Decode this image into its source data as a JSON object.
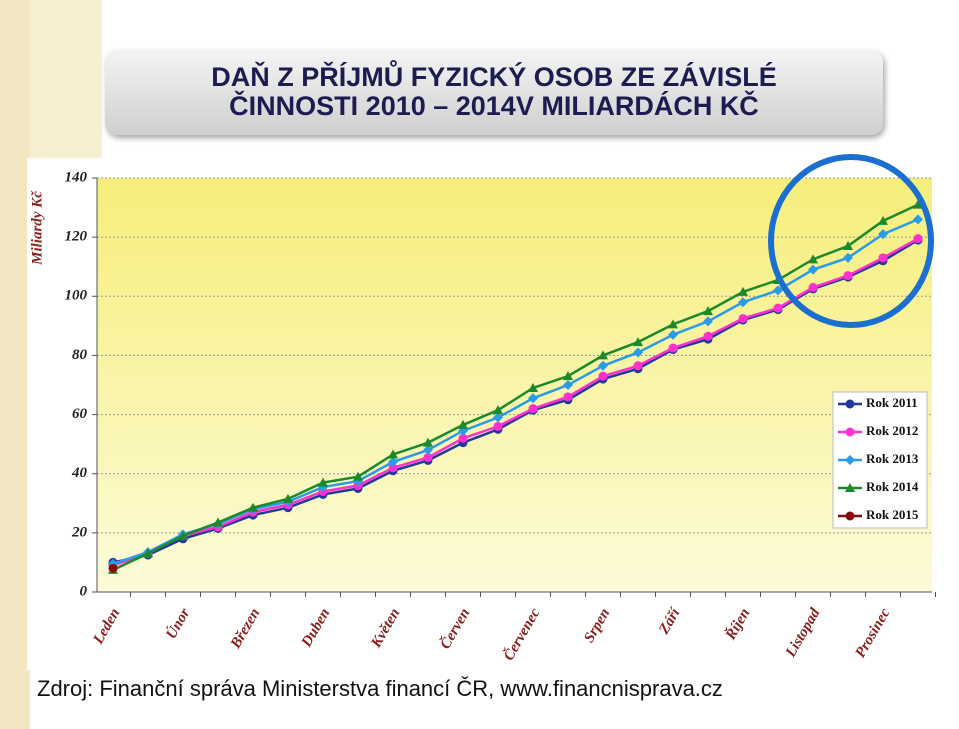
{
  "chart_data": {
    "type": "line",
    "title_lines": [
      "DAŇ Z PŘÍJMŮ FYZICKÝ OSOB ZE ZÁVISLÉ",
      "ČINNOSTI 2010 – 2014V MILIARDÁCH KČ"
    ],
    "y_label": "Miliardy Kč",
    "source": "Zdroj: Finanční správa Ministerstva financí ČR, www.financnisprava.cz",
    "categories": [
      "Leden",
      null,
      "Únor",
      null,
      "Březen",
      null,
      "Duben",
      null,
      "Květen",
      null,
      "Červen",
      null,
      "Červenec",
      null,
      "Srpen",
      null,
      "Září",
      null,
      "Říjen",
      null,
      "Listopad",
      null,
      "Prosinec",
      null
    ],
    "ylim": [
      0,
      140
    ],
    "yticks": [
      0,
      20,
      40,
      60,
      80,
      100,
      120,
      140
    ],
    "grid": true,
    "legend": "lower right",
    "series": [
      {
        "name": "Rok 2011",
        "color": "#1f3a99",
        "marker": "circle",
        "values": [
          10,
          12.5,
          18,
          21.5,
          26,
          28.5,
          33,
          35,
          41,
          44.5,
          50.5,
          55,
          61.5,
          65,
          72,
          75.5,
          82,
          85.5,
          92,
          95.5,
          102.5,
          106.5,
          112,
          119
        ]
      },
      {
        "name": "Rok 2012",
        "color": "#ff2fd0",
        "marker": "circle",
        "values": [
          9,
          13,
          19,
          22,
          27,
          29.5,
          34,
          36,
          42,
          45.5,
          52,
          56,
          62,
          66,
          73,
          76.5,
          82.5,
          86.5,
          92.5,
          96,
          103,
          107,
          113,
          119.5
        ]
      },
      {
        "name": "Rok 2013",
        "color": "#2a9be8",
        "marker": "diamond",
        "values": [
          9.5,
          13.5,
          19.5,
          23,
          28,
          30.5,
          35.5,
          37.5,
          44,
          48,
          54.5,
          59,
          65.5,
          70,
          76.5,
          81,
          87,
          91.5,
          98,
          102,
          109,
          113,
          121,
          126
        ]
      },
      {
        "name": "Rok 2014",
        "color": "#1a8a2a",
        "marker": "triangle",
        "values": [
          7.5,
          13,
          19,
          23.5,
          28.5,
          31.5,
          37,
          39,
          46.5,
          50.5,
          56.5,
          61.5,
          69,
          73,
          80,
          84.5,
          90.5,
          95,
          101.5,
          105.5,
          112.5,
          117,
          125.5,
          131
        ]
      },
      {
        "name": "Rok 2015",
        "color": "#8b0a0a",
        "marker": "circle",
        "values": [
          8,
          null,
          null,
          null,
          null,
          null,
          null,
          null,
          null,
          null,
          null,
          null,
          null,
          null,
          null,
          null,
          null,
          null,
          null,
          null,
          null,
          null,
          null,
          null
        ]
      }
    ]
  }
}
